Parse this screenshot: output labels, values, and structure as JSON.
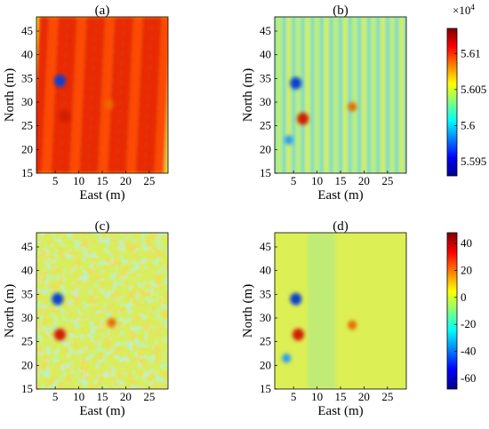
{
  "chart_data": [
    {
      "type": "heatmap",
      "title": "(a)",
      "xlabel": "East (m)",
      "ylabel": "North (m)",
      "xlim": [
        1,
        29
      ],
      "ylim": [
        15,
        48
      ],
      "xticks": [
        "5",
        "10",
        "15",
        "20",
        "25"
      ],
      "yticks": [
        "15",
        "20",
        "25",
        "30",
        "35",
        "40",
        "45"
      ],
      "pattern": "high-amplitude north-south stripes",
      "anomalies": [
        {
          "x": 6,
          "y": 34.5,
          "sign": "low"
        },
        {
          "x": 7,
          "y": 27,
          "sign": "high"
        },
        {
          "x": 16.5,
          "y": 29.5,
          "sign": "high"
        }
      ]
    },
    {
      "type": "heatmap",
      "title": "(b)",
      "xlabel": "East (m)",
      "ylabel": "North (m)",
      "xlim": [
        1,
        29
      ],
      "ylim": [
        15,
        48
      ],
      "xticks": [
        "5",
        "10",
        "15",
        "20",
        "25"
      ],
      "yticks": [
        "15",
        "20",
        "25",
        "30",
        "35",
        "40",
        "45"
      ],
      "pattern": "faint north-south stripes",
      "anomalies": [
        {
          "x": 5.5,
          "y": 34,
          "sign": "low"
        },
        {
          "x": 7,
          "y": 26.5,
          "sign": "high"
        },
        {
          "x": 17.5,
          "y": 29,
          "sign": "high"
        },
        {
          "x": 4,
          "y": 22,
          "sign": "low"
        }
      ]
    },
    {
      "type": "heatmap",
      "title": "(c)",
      "xlabel": "East (m)",
      "ylabel": "North (m)",
      "xlim": [
        1,
        29
      ],
      "ylim": [
        15,
        48
      ],
      "xticks": [
        "5",
        "10",
        "15",
        "20",
        "25"
      ],
      "yticks": [
        "15",
        "20",
        "25",
        "30",
        "35",
        "40",
        "45"
      ],
      "pattern": "speckled noise",
      "anomalies": [
        {
          "x": 5.5,
          "y": 34,
          "sign": "low"
        },
        {
          "x": 6,
          "y": 26.5,
          "sign": "high"
        },
        {
          "x": 17,
          "y": 29,
          "sign": "high"
        }
      ]
    },
    {
      "type": "heatmap",
      "title": "(d)",
      "xlabel": "East (m)",
      "ylabel": "North (m)",
      "xlim": [
        1,
        29
      ],
      "ylim": [
        15,
        48
      ],
      "xticks": [
        "5",
        "10",
        "15",
        "20",
        "25"
      ],
      "yticks": [
        "15",
        "20",
        "25",
        "30",
        "35",
        "40",
        "45"
      ],
      "pattern": "smooth",
      "anomalies": [
        {
          "x": 5.5,
          "y": 34,
          "sign": "low"
        },
        {
          "x": 6,
          "y": 26.5,
          "sign": "high"
        },
        {
          "x": 17.5,
          "y": 28.5,
          "sign": "high"
        },
        {
          "x": 3.5,
          "y": 21.5,
          "sign": "low"
        }
      ]
    }
  ],
  "colorbar_top": {
    "multiplier": "×10",
    "exponent": "4",
    "min": 5.593,
    "max": 5.6135,
    "ticks": [
      "5.61",
      "5.605",
      "5.6",
      "5.595"
    ],
    "colormap": "jet"
  },
  "colorbar_bottom": {
    "min": -68,
    "max": 48,
    "ticks": [
      "40",
      "20",
      "0",
      "-20",
      "-40",
      "-60"
    ],
    "colormap": "jet"
  }
}
